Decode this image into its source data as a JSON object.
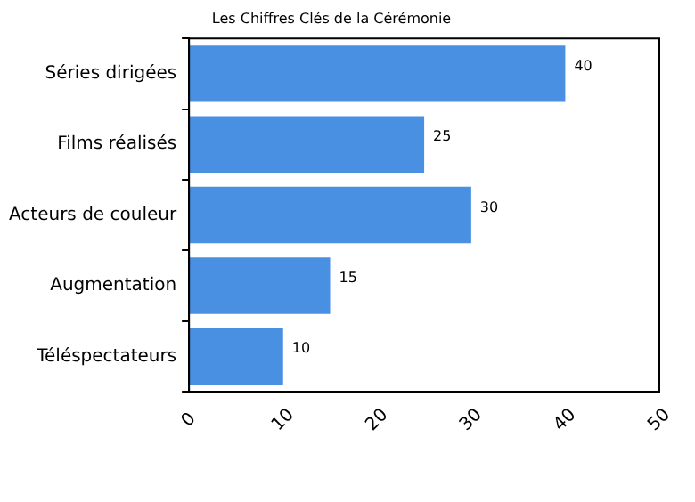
{
  "chart_data": {
    "type": "bar",
    "orientation": "horizontal",
    "title": "Les Chiffres Clés de la Cérémonie",
    "categories": [
      "Séries dirigées",
      "Films réalisés",
      "Acteurs de couleur",
      "Augmentation",
      "Téléspectateurs"
    ],
    "values": [
      40,
      25,
      30,
      15,
      10
    ],
    "color": "#4a90e2",
    "xlim": [
      0,
      50
    ],
    "xticks": [
      0,
      10,
      20,
      30,
      40,
      50
    ],
    "grid": false,
    "data_labels": true
  }
}
